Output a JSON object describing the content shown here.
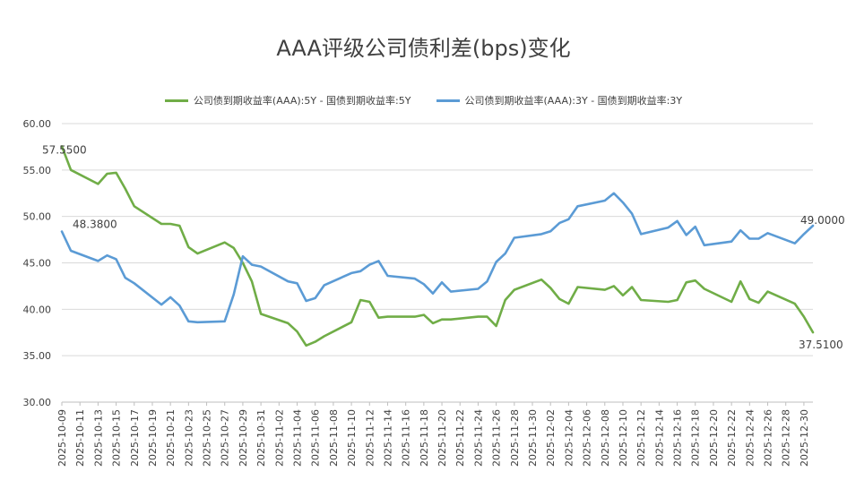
{
  "chart_data": {
    "type": "line",
    "title": "AAA评级公司债利差(bps)变化",
    "legend_position": "top",
    "grid": true,
    "ylim": [
      30,
      60
    ],
    "yticks": [
      "30.00",
      "35.00",
      "40.00",
      "45.00",
      "50.00",
      "55.00",
      "60.00"
    ],
    "x_start": "2025-10-09",
    "x_end": "2025-12-31",
    "xtick_labels": [
      "2025-10-09",
      "2025-10-11",
      "2025-10-13",
      "2025-10-15",
      "2025-10-17",
      "2025-10-19",
      "2025-10-21",
      "2025-10-23",
      "2025-10-25",
      "2025-10-27",
      "2025-10-29",
      "2025-10-31",
      "2025-11-02",
      "2025-11-04",
      "2025-11-06",
      "2025-11-08",
      "2025-11-10",
      "2025-11-12",
      "2025-11-14",
      "2025-11-16",
      "2025-11-18",
      "2025-11-20",
      "2025-11-22",
      "2025-11-24",
      "2025-11-26",
      "2025-11-28",
      "2025-11-30",
      "2025-12-02",
      "2025-12-04",
      "2025-12-06",
      "2025-12-08",
      "2025-12-10",
      "2025-12-12",
      "2025-12-14",
      "2025-12-16",
      "2025-12-18",
      "2025-12-20",
      "2025-12-22",
      "2025-12-24",
      "2025-12-26",
      "2025-12-28",
      "2025-12-30"
    ],
    "series": [
      {
        "name": "公司债到期收益率(AAA):5Y - 国债到期收益率:5Y",
        "color": "#70ad47",
        "points": [
          [
            "2025-10-09",
            57.55
          ],
          [
            "2025-10-10",
            55.0
          ],
          [
            "2025-10-13",
            53.5
          ],
          [
            "2025-10-14",
            54.6
          ],
          [
            "2025-10-15",
            54.7
          ],
          [
            "2025-10-16",
            53.0
          ],
          [
            "2025-10-17",
            51.1
          ],
          [
            "2025-10-20",
            49.2
          ],
          [
            "2025-10-21",
            49.2
          ],
          [
            "2025-10-22",
            49.0
          ],
          [
            "2025-10-23",
            46.7
          ],
          [
            "2025-10-24",
            46.0
          ],
          [
            "2025-10-27",
            47.2
          ],
          [
            "2025-10-28",
            46.6
          ],
          [
            "2025-10-29",
            45.0
          ],
          [
            "2025-10-30",
            43.0
          ],
          [
            "2025-10-31",
            39.5
          ],
          [
            "2025-11-03",
            38.5
          ],
          [
            "2025-11-04",
            37.6
          ],
          [
            "2025-11-05",
            36.1
          ],
          [
            "2025-11-06",
            36.5
          ],
          [
            "2025-11-07",
            37.1
          ],
          [
            "2025-11-10",
            38.6
          ],
          [
            "2025-11-11",
            41.0
          ],
          [
            "2025-11-12",
            40.8
          ],
          [
            "2025-11-13",
            39.1
          ],
          [
            "2025-11-14",
            39.2
          ],
          [
            "2025-11-17",
            39.2
          ],
          [
            "2025-11-18",
            39.4
          ],
          [
            "2025-11-19",
            38.5
          ],
          [
            "2025-11-20",
            38.9
          ],
          [
            "2025-11-21",
            38.9
          ],
          [
            "2025-11-24",
            39.2
          ],
          [
            "2025-11-25",
            39.2
          ],
          [
            "2025-11-26",
            38.2
          ],
          [
            "2025-11-27",
            41.0
          ],
          [
            "2025-11-28",
            42.1
          ],
          [
            "2025-12-01",
            43.2
          ],
          [
            "2025-12-02",
            42.3
          ],
          [
            "2025-12-03",
            41.1
          ],
          [
            "2025-12-04",
            40.6
          ],
          [
            "2025-12-05",
            42.4
          ],
          [
            "2025-12-08",
            42.1
          ],
          [
            "2025-12-09",
            42.5
          ],
          [
            "2025-12-10",
            41.5
          ],
          [
            "2025-12-11",
            42.4
          ],
          [
            "2025-12-12",
            41.0
          ],
          [
            "2025-12-15",
            40.8
          ],
          [
            "2025-12-16",
            41.0
          ],
          [
            "2025-12-17",
            42.9
          ],
          [
            "2025-12-18",
            43.1
          ],
          [
            "2025-12-19",
            42.2
          ],
          [
            "2025-12-22",
            40.8
          ],
          [
            "2025-12-23",
            43.0
          ],
          [
            "2025-12-24",
            41.1
          ],
          [
            "2025-12-25",
            40.7
          ],
          [
            "2025-12-26",
            41.9
          ],
          [
            "2025-12-29",
            40.6
          ],
          [
            "2025-12-30",
            39.2
          ],
          [
            "2025-12-31",
            37.51
          ]
        ]
      },
      {
        "name": "公司债到期收益率(AAA):3Y - 国债到期收益率:3Y",
        "color": "#5b9bd5",
        "points": [
          [
            "2025-10-09",
            48.38
          ],
          [
            "2025-10-10",
            46.3
          ],
          [
            "2025-10-13",
            45.2
          ],
          [
            "2025-10-14",
            45.8
          ],
          [
            "2025-10-15",
            45.4
          ],
          [
            "2025-10-16",
            43.4
          ],
          [
            "2025-10-17",
            42.8
          ],
          [
            "2025-10-20",
            40.5
          ],
          [
            "2025-10-21",
            41.3
          ],
          [
            "2025-10-22",
            40.4
          ],
          [
            "2025-10-23",
            38.7
          ],
          [
            "2025-10-24",
            38.6
          ],
          [
            "2025-10-27",
            38.7
          ],
          [
            "2025-10-28",
            41.6
          ],
          [
            "2025-10-29",
            45.7
          ],
          [
            "2025-10-30",
            44.8
          ],
          [
            "2025-10-31",
            44.6
          ],
          [
            "2025-11-03",
            43.0
          ],
          [
            "2025-11-04",
            42.8
          ],
          [
            "2025-11-05",
            40.9
          ],
          [
            "2025-11-06",
            41.2
          ],
          [
            "2025-11-07",
            42.6
          ],
          [
            "2025-11-10",
            43.9
          ],
          [
            "2025-11-11",
            44.1
          ],
          [
            "2025-11-12",
            44.8
          ],
          [
            "2025-11-13",
            45.2
          ],
          [
            "2025-11-14",
            43.6
          ],
          [
            "2025-11-17",
            43.3
          ],
          [
            "2025-11-18",
            42.7
          ],
          [
            "2025-11-19",
            41.7
          ],
          [
            "2025-11-20",
            42.9
          ],
          [
            "2025-11-21",
            41.9
          ],
          [
            "2025-11-24",
            42.2
          ],
          [
            "2025-11-25",
            43.0
          ],
          [
            "2025-11-26",
            45.1
          ],
          [
            "2025-11-27",
            46.0
          ],
          [
            "2025-11-28",
            47.7
          ],
          [
            "2025-12-01",
            48.1
          ],
          [
            "2025-12-02",
            48.4
          ],
          [
            "2025-12-03",
            49.3
          ],
          [
            "2025-12-04",
            49.7
          ],
          [
            "2025-12-05",
            51.1
          ],
          [
            "2025-12-08",
            51.7
          ],
          [
            "2025-12-09",
            52.5
          ],
          [
            "2025-12-10",
            51.5
          ],
          [
            "2025-12-11",
            50.3
          ],
          [
            "2025-12-12",
            48.1
          ],
          [
            "2025-12-15",
            48.8
          ],
          [
            "2025-12-16",
            49.5
          ],
          [
            "2025-12-17",
            48.0
          ],
          [
            "2025-12-18",
            48.9
          ],
          [
            "2025-12-19",
            46.9
          ],
          [
            "2025-12-22",
            47.3
          ],
          [
            "2025-12-23",
            48.5
          ],
          [
            "2025-12-24",
            47.6
          ],
          [
            "2025-12-25",
            47.6
          ],
          [
            "2025-12-26",
            48.2
          ],
          [
            "2025-12-29",
            47.1
          ],
          [
            "2025-12-30",
            48.1
          ],
          [
            "2025-12-31",
            49.0
          ]
        ]
      }
    ],
    "annotations": [
      {
        "series": 0,
        "date": "2025-10-09",
        "label": "57.5500"
      },
      {
        "series": 1,
        "date": "2025-10-09",
        "label": "48.3800"
      },
      {
        "series": 1,
        "date": "2025-12-31",
        "label": "49.0000"
      },
      {
        "series": 0,
        "date": "2025-12-31",
        "label": "37.5100"
      }
    ]
  }
}
